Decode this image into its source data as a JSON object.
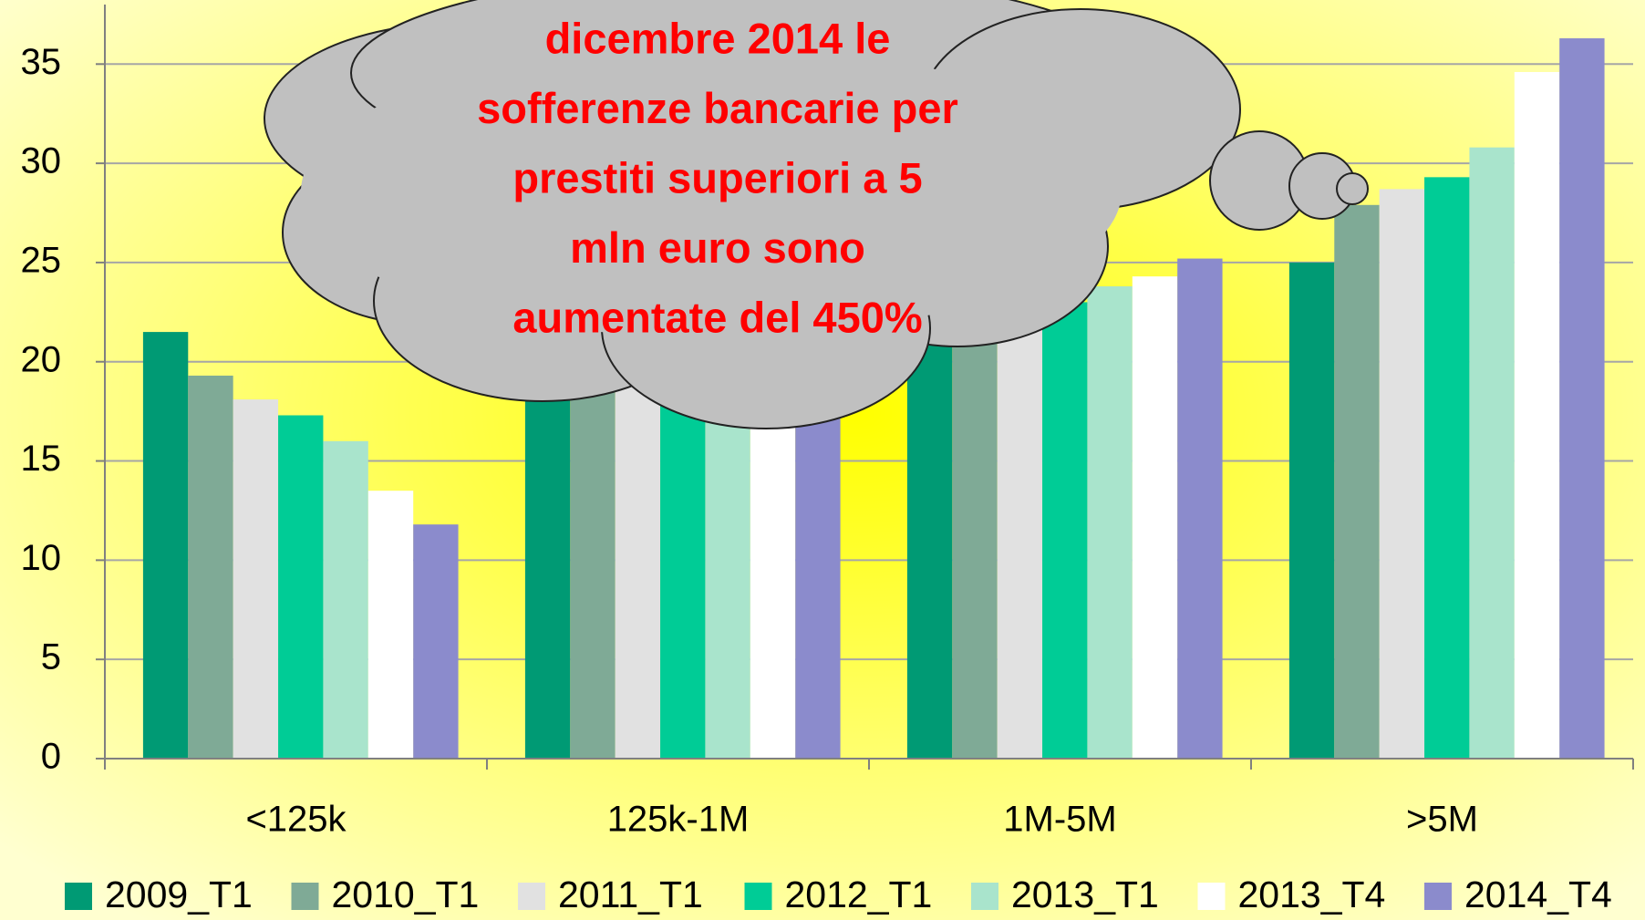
{
  "chart_data": {
    "type": "bar",
    "categories": [
      "<125k",
      "125k-1M",
      "1M-5M",
      ">5M"
    ],
    "series": [
      {
        "name": "2009_T1",
        "color": "#009a74",
        "values": [
          21.5,
          19.0,
          21.3,
          25.0
        ]
      },
      {
        "name": "2010_T1",
        "color": "#7faa96",
        "values": [
          19.3,
          19.2,
          22.0,
          27.9
        ]
      },
      {
        "name": "2011_T1",
        "color": "#e1e1e1",
        "values": [
          18.1,
          19.3,
          22.5,
          28.7
        ]
      },
      {
        "name": "2012_T1",
        "color": "#00cc96",
        "values": [
          17.3,
          19.0,
          23.0,
          29.3
        ]
      },
      {
        "name": "2013_T1",
        "color": "#a9e4cc",
        "values": [
          16.0,
          18.0,
          23.8,
          30.8
        ]
      },
      {
        "name": "2013_T4",
        "color": "#ffffff",
        "values": [
          13.5,
          17.0,
          24.3,
          34.6
        ]
      },
      {
        "name": "2014_T4",
        "color": "#8b8bcc",
        "values": [
          11.8,
          18.0,
          25.2,
          36.3
        ]
      }
    ],
    "ylim": [
      0,
      38
    ],
    "yticks": [
      0,
      5,
      10,
      15,
      20,
      25,
      30,
      35
    ],
    "grid": true,
    "legend": "bottom",
    "annotation": [
      "dicembre 2014 le",
      "sofferenze bancarie per",
      "prestiti superiori  a 5",
      "mln euro sono",
      "aumentate del 450%"
    ]
  }
}
